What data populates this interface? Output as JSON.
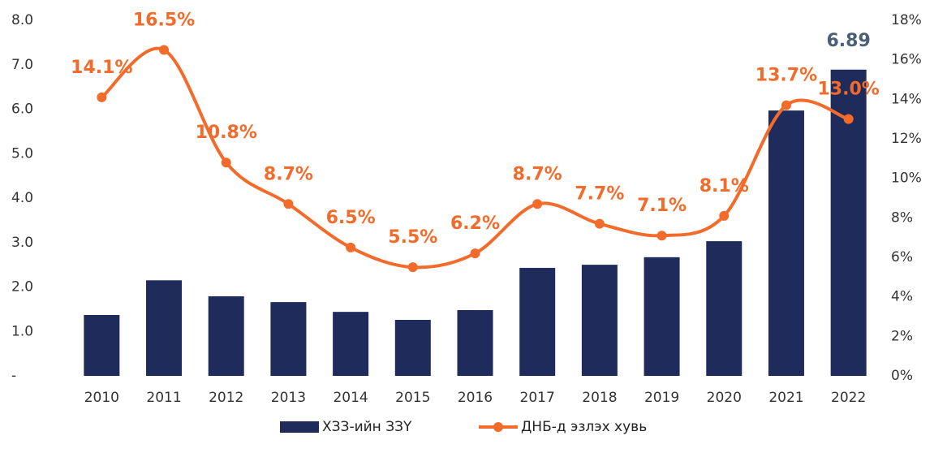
{
  "chart_data": {
    "type": "bar_line",
    "categories": [
      "2010",
      "2011",
      "2012",
      "2013",
      "2014",
      "2015",
      "2016",
      "2017",
      "2018",
      "2019",
      "2020",
      "2021",
      "2022"
    ],
    "series": [
      {
        "name": "ХЗЗ-ийн ЗЗҮ",
        "type": "bar",
        "color": "#1f2b5b",
        "values": [
          1.37,
          2.15,
          1.79,
          1.66,
          1.44,
          1.26,
          1.48,
          2.43,
          2.5,
          2.67,
          3.03,
          5.97,
          6.89
        ],
        "value_labels": [
          null,
          null,
          null,
          null,
          null,
          null,
          null,
          null,
          null,
          null,
          null,
          null,
          "6.89"
        ],
        "label_color": "#4a6076"
      },
      {
        "name": "ДНБ-д эзлэх хувь",
        "type": "line",
        "axis": "y2",
        "color": "#f26b2a",
        "values": [
          14.1,
          16.5,
          10.8,
          8.7,
          6.5,
          5.5,
          6.2,
          8.7,
          7.7,
          7.1,
          8.1,
          13.7,
          13.0
        ],
        "value_labels": [
          "14.1%",
          "16.5%",
          "10.8%",
          "8.7%",
          "6.5%",
          "5.5%",
          "6.2%",
          "8.7%",
          "7.7%",
          "7.1%",
          "8.1%",
          "13.7%",
          "13.0%"
        ]
      }
    ],
    "ylim": [
      0,
      8
    ],
    "yticks": [
      {
        "value": 0,
        "label": "-"
      },
      {
        "value": 1,
        "label": "1.0"
      },
      {
        "value": 2,
        "label": "2.0"
      },
      {
        "value": 3,
        "label": "3.0"
      },
      {
        "value": 4,
        "label": "4.0"
      },
      {
        "value": 5,
        "label": "5.0"
      },
      {
        "value": 6,
        "label": "6.0"
      },
      {
        "value": 7,
        "label": "7.0"
      },
      {
        "value": 8,
        "label": "8.0"
      }
    ],
    "y2lim": [
      0,
      18
    ],
    "y2ticks": [
      {
        "value": 0,
        "label": "0%"
      },
      {
        "value": 2,
        "label": "2%"
      },
      {
        "value": 4,
        "label": "4%"
      },
      {
        "value": 6,
        "label": "6%"
      },
      {
        "value": 8,
        "label": "8%"
      },
      {
        "value": 10,
        "label": "10%"
      },
      {
        "value": 12,
        "label": "12%"
      },
      {
        "value": 14,
        "label": "14%"
      },
      {
        "value": 16,
        "label": "16%"
      },
      {
        "value": 18,
        "label": "18%"
      }
    ],
    "grid": false,
    "legend": "bottom"
  }
}
